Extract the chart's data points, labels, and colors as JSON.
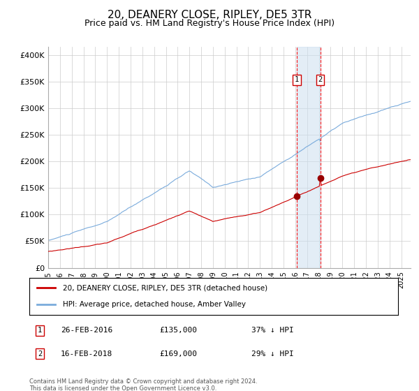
{
  "title": "20, DEANERY CLOSE, RIPLEY, DE5 3TR",
  "subtitle": "Price paid vs. HM Land Registry's House Price Index (HPI)",
  "title_fontsize": 11,
  "subtitle_fontsize": 9,
  "hpi_color": "#7aabdc",
  "price_color": "#cc0000",
  "background_color": "#ffffff",
  "grid_color": "#cccccc",
  "point1_date_num": 2016.13,
  "point1_price": 135000,
  "point2_date_num": 2018.12,
  "point2_price": 169000,
  "hpi_at_point1": 214286,
  "hpi_at_point2": 238028,
  "annotation1": "26-FEB-2016",
  "annotation1_price": "£135,000",
  "annotation1_hpi": "37% ↓ HPI",
  "annotation2": "16-FEB-2018",
  "annotation2_price": "£169,000",
  "annotation2_hpi": "29% ↓ HPI",
  "ylabel_ticks": [
    0,
    50000,
    100000,
    150000,
    200000,
    250000,
    300000,
    350000,
    400000
  ],
  "ylabel_labels": [
    "£0",
    "£50K",
    "£100K",
    "£150K",
    "£200K",
    "£250K",
    "£300K",
    "£350K",
    "£400K"
  ],
  "xlim_start": 1995.0,
  "xlim_end": 2025.8,
  "ylim_min": 0,
  "ylim_max": 415000,
  "legend_label_price": "20, DEANERY CLOSE, RIPLEY, DE5 3TR (detached house)",
  "legend_label_hpi": "HPI: Average price, detached house, Amber Valley",
  "footnote": "Contains HM Land Registry data © Crown copyright and database right 2024.\nThis data is licensed under the Open Government Licence v3.0."
}
